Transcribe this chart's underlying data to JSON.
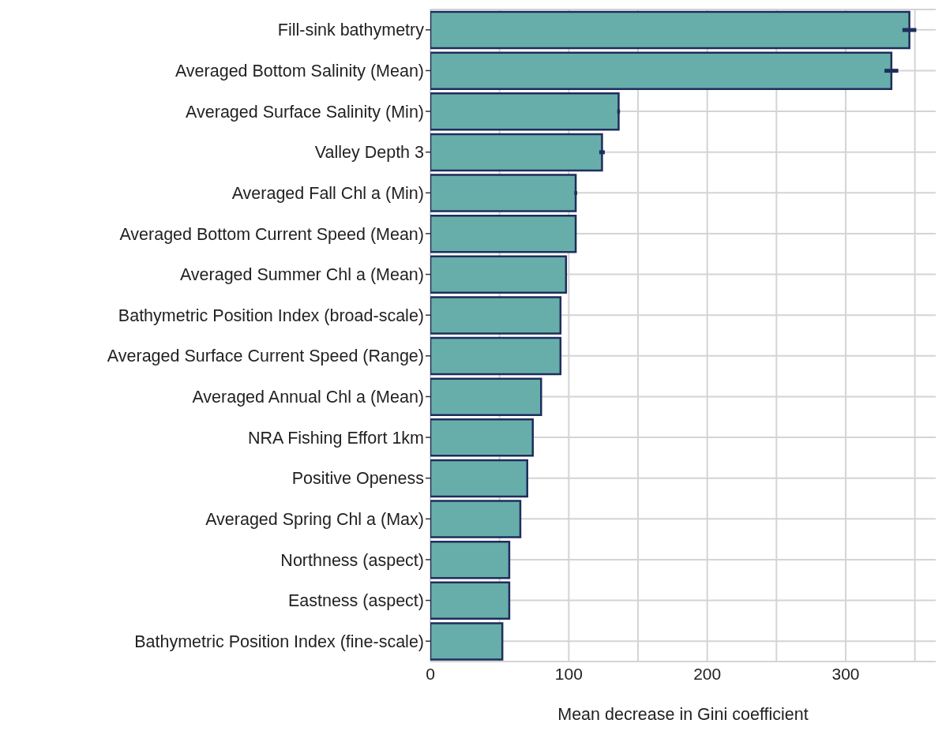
{
  "chart_data": {
    "type": "bar",
    "orientation": "horizontal",
    "xlabel": "Mean decrease in Gini coefficient",
    "categories": [
      "Fill-sink bathymetry",
      "Averaged Bottom Salinity (Mean)",
      "Averaged Surface Salinity (Min)",
      "Valley Depth 3",
      "Averaged Fall Chl a (Min)",
      "Averaged Bottom Current Speed (Mean)",
      "Averaged Summer Chl a (Mean)",
      "Bathymetric Position Index (broad-scale)",
      "Averaged Surface Current Speed (Range)",
      "Averaged Annual Chl a (Mean)",
      "NRA Fishing Effort 1km",
      "Positive Openess",
      "Averaged Spring Chl a (Max)",
      "Northness (aspect)",
      "Eastness (aspect)",
      "Bathymetric Position Index (fine-scale)"
    ],
    "values": [
      346,
      333,
      136,
      124,
      105,
      105,
      98,
      94,
      94,
      80,
      74,
      70,
      65,
      57,
      57,
      52
    ],
    "errors": [
      5,
      5,
      1,
      2,
      1,
      null,
      null,
      null,
      null,
      null,
      null,
      null,
      null,
      null,
      null,
      null
    ],
    "color": "#67aeab",
    "xlim": [
      0,
      365
    ],
    "xticks": [
      0,
      {
        "value": 50,
        "label": null
      },
      100,
      {
        "value": 150,
        "label": null
      },
      200,
      {
        "value": 250,
        "label": null
      },
      300,
      {
        "value": 350,
        "label": null
      }
    ],
    "grid": true
  }
}
